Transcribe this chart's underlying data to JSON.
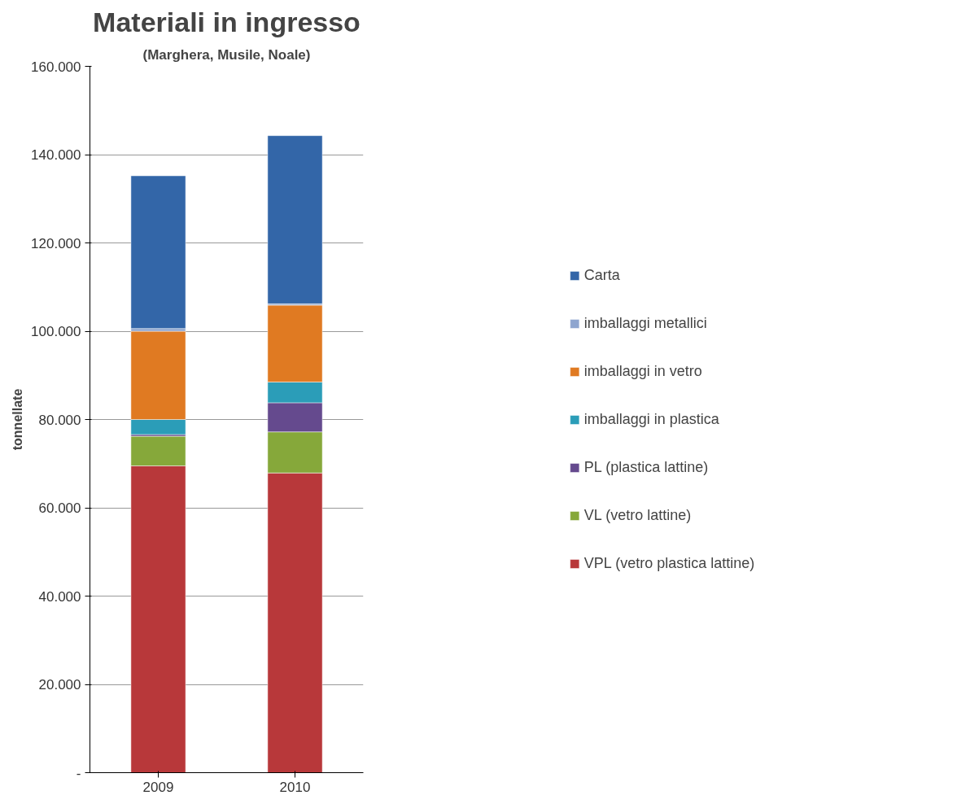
{
  "chart_data": {
    "type": "bar",
    "title": "Materiali in ingresso",
    "subtitle": "(Marghera, Musile, Noale)",
    "ylabel": "tonnellate",
    "categories": [
      "2009",
      "2010"
    ],
    "stacked": true,
    "series": [
      {
        "name": "VPL (vetro plastica lattine)",
        "color": "#b8383a",
        "values": [
          69500,
          67900
        ]
      },
      {
        "name": "VL (vetro lattine)",
        "color": "#86a83a",
        "values": [
          6700,
          9300
        ]
      },
      {
        "name": "PL (plastica lattine)",
        "color": "#654a8e",
        "values": [
          400,
          6600
        ]
      },
      {
        "name": "imballaggi in plastica",
        "color": "#2b9db8",
        "values": [
          3400,
          4700
        ]
      },
      {
        "name": "imballaggi in vetro",
        "color": "#e07a22",
        "values": [
          20000,
          17400
        ]
      },
      {
        "name": "imballaggi metallici",
        "color": "#8ea5cf",
        "values": [
          600,
          300
        ]
      },
      {
        "name": "Carta",
        "color": "#3366a8",
        "values": [
          34600,
          38100
        ]
      }
    ],
    "ylim": [
      0,
      160000
    ],
    "yticks": [
      {
        "value": 0,
        "label": "-"
      },
      {
        "value": 20000,
        "label": "20.000"
      },
      {
        "value": 40000,
        "label": "40.000"
      },
      {
        "value": 60000,
        "label": "60.000"
      },
      {
        "value": 80000,
        "label": "80.000"
      },
      {
        "value": 100000,
        "label": "100.000"
      },
      {
        "value": 120000,
        "label": "120.000"
      },
      {
        "value": 140000,
        "label": "140.000"
      },
      {
        "value": 160000,
        "label": "160.000"
      }
    ],
    "grid": "y",
    "legend": "right"
  }
}
